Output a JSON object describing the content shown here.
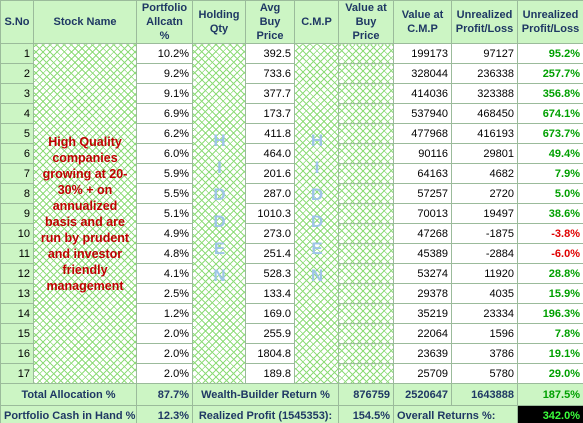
{
  "table": {
    "headers": [
      "S.No",
      "Stock Name",
      "Portfolio Allcatn %",
      "Holding Qty",
      "Avg Buy Price",
      "C.M.P",
      "Value at Buy Price",
      "Value at C.M.P",
      "Unrealized Profit/Loss",
      "Unrealized Profit/Loss"
    ],
    "stock_name_note": "High Quality companies growing at 20-30% + on annualized basis and are run by prudent and investor friendly management",
    "holding_qty_note": "HIDDEN",
    "cmp_note": "HIDDEN",
    "rows": [
      [
        "1",
        "10.2%",
        "392.5",
        "199173",
        "97127",
        "95.2%"
      ],
      [
        "2",
        "9.2%",
        "733.6",
        "328044",
        "236338",
        "257.7%"
      ],
      [
        "3",
        "9.1%",
        "377.7",
        "414036",
        "323388",
        "356.8%"
      ],
      [
        "4",
        "6.9%",
        "173.7",
        "537940",
        "468450",
        "674.1%"
      ],
      [
        "5",
        "6.2%",
        "411.8",
        "477968",
        "416193",
        "673.7%"
      ],
      [
        "6",
        "6.0%",
        "464.0",
        "90116",
        "29801",
        "49.4%"
      ],
      [
        "7",
        "5.9%",
        "201.6",
        "64163",
        "4682",
        "7.9%"
      ],
      [
        "8",
        "5.5%",
        "287.0",
        "57257",
        "2720",
        "5.0%"
      ],
      [
        "9",
        "5.1%",
        "1010.3",
        "70013",
        "19497",
        "38.6%"
      ],
      [
        "10",
        "4.9%",
        "273.0",
        "47268",
        "-1875",
        "-3.8%"
      ],
      [
        "11",
        "4.8%",
        "251.4",
        "45389",
        "-2884",
        "-6.0%"
      ],
      [
        "12",
        "4.1%",
        "528.3",
        "53274",
        "11920",
        "28.8%"
      ],
      [
        "13",
        "2.5%",
        "133.4",
        "29378",
        "4035",
        "15.9%"
      ],
      [
        "14",
        "1.2%",
        "169.0",
        "35219",
        "23334",
        "196.3%"
      ],
      [
        "15",
        "2.0%",
        "255.9",
        "22064",
        "1596",
        "7.8%"
      ],
      [
        "16",
        "2.0%",
        "1804.8",
        "23639",
        "3786",
        "19.1%"
      ],
      [
        "17",
        "2.0%",
        "189.8",
        "25709",
        "5780",
        "29.0%"
      ]
    ],
    "total": {
      "label": "Total Allocation %",
      "allocation": "87.7%",
      "return_label": "Wealth-Builder Return %",
      "value_at_buy": "876759",
      "value_at_cmp": "2520647",
      "unrealized_pl": "1643888",
      "unrealized_pl_pct": "187.5%"
    },
    "footer": {
      "cash_label": "Portfolio Cash in Hand %:",
      "cash": "12.3%",
      "realized_label": "Realized Profit (1545353):",
      "realized": "154.5%",
      "overall_label": "Overall Returns %:",
      "overall": "342.0%"
    }
  }
}
